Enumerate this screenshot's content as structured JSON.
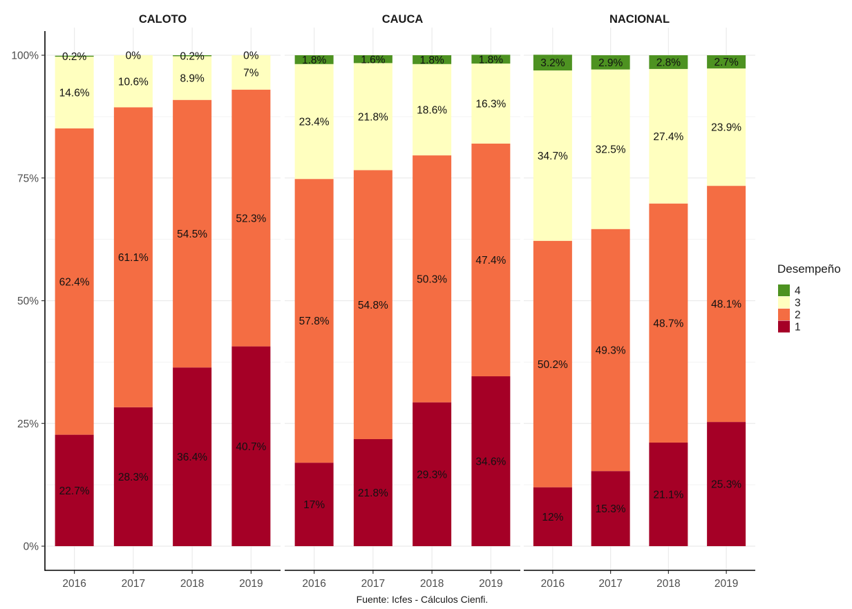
{
  "chart_data": {
    "type": "bar",
    "stacked": true,
    "percent": true,
    "panels": [
      {
        "title": "CALOTO",
        "categories": [
          "2016",
          "2017",
          "2018",
          "2019"
        ],
        "series": [
          {
            "name": "1",
            "values": [
              22.7,
              28.3,
              36.4,
              40.7
            ]
          },
          {
            "name": "2",
            "values": [
              62.4,
              61.1,
              54.5,
              52.3
            ]
          },
          {
            "name": "3",
            "values": [
              14.6,
              10.6,
              8.9,
              7
            ]
          },
          {
            "name": "4",
            "values": [
              0.2,
              0,
              0.2,
              0
            ]
          }
        ]
      },
      {
        "title": "CAUCA",
        "categories": [
          "2016",
          "2017",
          "2018",
          "2019"
        ],
        "series": [
          {
            "name": "1",
            "values": [
              17,
              21.8,
              29.3,
              34.6
            ]
          },
          {
            "name": "2",
            "values": [
              57.8,
              54.8,
              50.3,
              47.4
            ]
          },
          {
            "name": "3",
            "values": [
              23.4,
              21.8,
              18.6,
              16.3
            ]
          },
          {
            "name": "4",
            "values": [
              1.8,
              1.6,
              1.8,
              1.8
            ]
          }
        ]
      },
      {
        "title": "NACIONAL",
        "categories": [
          "2016",
          "2017",
          "2018",
          "2019"
        ],
        "series": [
          {
            "name": "1",
            "values": [
              12,
              15.3,
              21.1,
              25.3
            ]
          },
          {
            "name": "2",
            "values": [
              50.2,
              49.3,
              48.7,
              48.1
            ]
          },
          {
            "name": "3",
            "values": [
              34.7,
              32.5,
              27.4,
              23.9
            ]
          },
          {
            "name": "4",
            "values": [
              3.2,
              2.9,
              2.8,
              2.7
            ]
          }
        ]
      }
    ],
    "y_ticks": [
      "0%",
      "25%",
      "50%",
      "75%",
      "100%"
    ],
    "y_tick_values": [
      0,
      25,
      50,
      75,
      100
    ],
    "ylim": [
      0,
      100
    ],
    "legend": {
      "title": "Desempeño",
      "position": "right",
      "items": [
        "4",
        "3",
        "2",
        "1"
      ]
    },
    "colors": {
      "1": "#a50026",
      "2": "#f46d43",
      "3": "#ffffbf",
      "4": "#4d9221"
    },
    "grid": true,
    "caption": "Fuente: Icfes - Cálculos Cienfi."
  }
}
